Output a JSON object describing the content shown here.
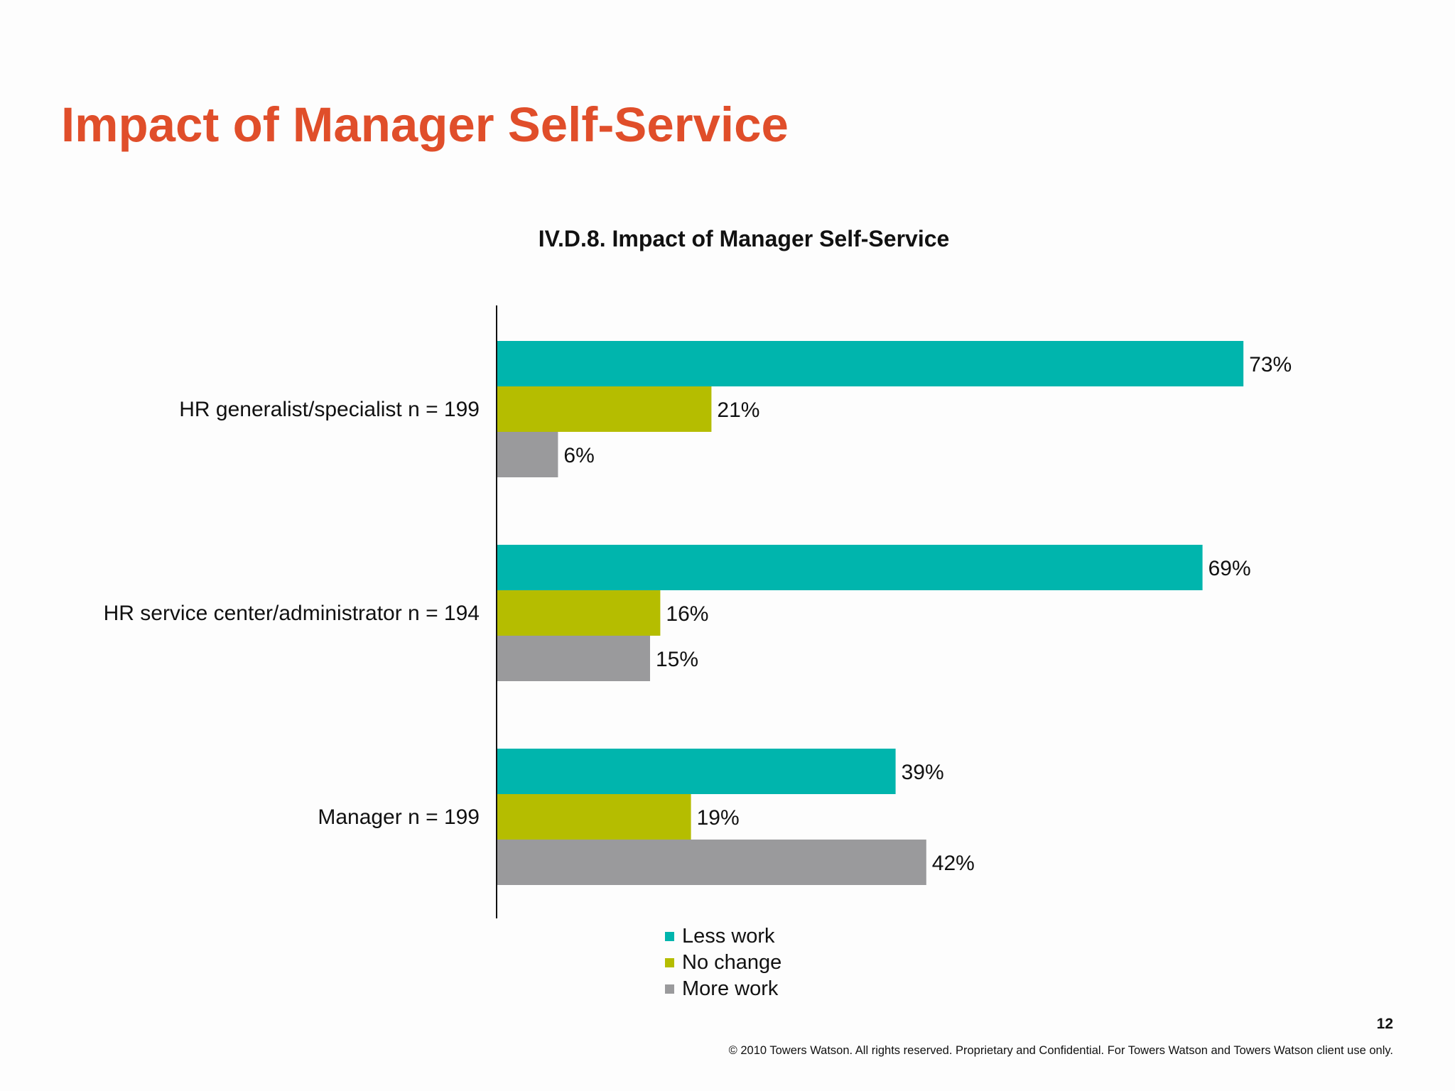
{
  "slide": {
    "title": "Impact of Manager Self-Service",
    "page_number": "12",
    "footer": "© 2010 Towers Watson. All rights reserved. Proprietary and Confidential. For Towers Watson and Towers Watson client use only."
  },
  "chart_data": {
    "type": "bar",
    "orientation": "horizontal",
    "title": "IV.D.8. Impact of Manager Self-Service",
    "categories": [
      "HR generalist/specialist n = 199",
      "HR service center/administrator n = 194",
      "Manager n = 199"
    ],
    "series": [
      {
        "name": "Less work",
        "color": "#00b5ad",
        "values": [
          73,
          69,
          39
        ],
        "labels": [
          "73%",
          "69%",
          "39%"
        ]
      },
      {
        "name": "No change",
        "color": "#b5bd00",
        "values": [
          21,
          16,
          19
        ],
        "labels": [
          "21%",
          "16%",
          "19%"
        ]
      },
      {
        "name": "More work",
        "color": "#9a9a9c",
        "values": [
          6,
          15,
          42
        ],
        "labels": [
          "6%",
          "15%",
          "42%"
        ]
      }
    ],
    "xlim": [
      0,
      100
    ],
    "unit": "%",
    "grid": false,
    "legend_position": "bottom"
  }
}
